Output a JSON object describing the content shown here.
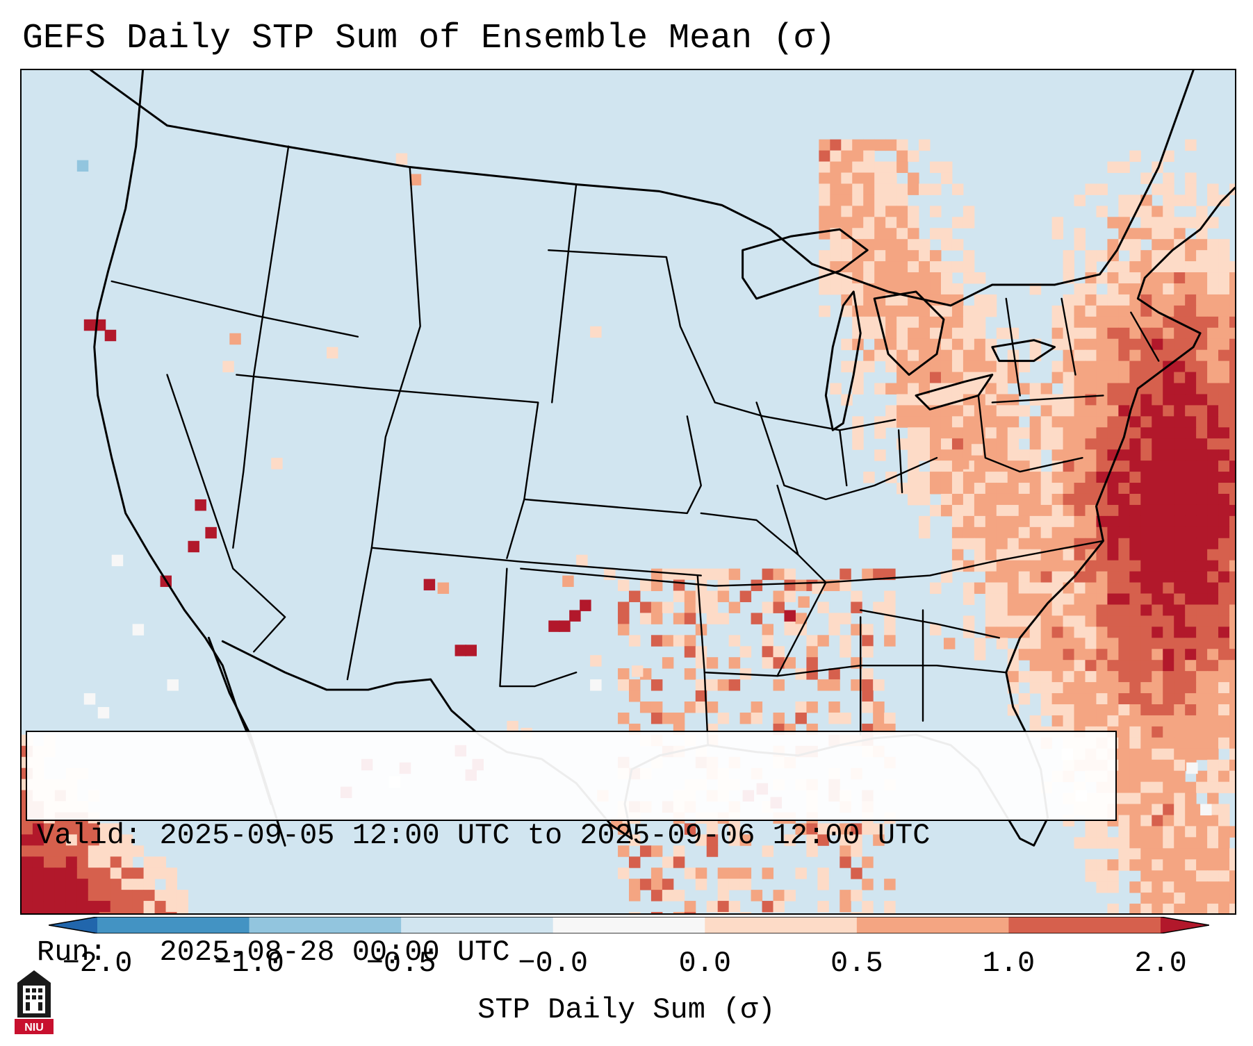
{
  "header": {
    "title": "GEFS Daily STP Sum of Ensemble Mean (σ)"
  },
  "info_box": {
    "valid_label": "Valid:",
    "valid_value": "2025-09-05 12:00 UTC to 2025-09-06 12:00 UTC",
    "run_label": "Run:",
    "run_value": "2025-08-28 00:00 UTC"
  },
  "colorbar": {
    "label": "STP Daily Sum (σ)",
    "ticks": [
      "−2.0",
      "−1.0",
      "−0.5",
      "−0.0",
      "0.0",
      "0.5",
      "1.0",
      "2.0"
    ],
    "colors": [
      "#2166ac",
      "#4393c3",
      "#92c5de",
      "#d1e5f0",
      "#f7f7f7",
      "#fddbc7",
      "#f4a582",
      "#d6604d",
      "#b2182b"
    ],
    "extend": "both"
  },
  "logo": {
    "text": "NIU",
    "color": "#c8102e"
  },
  "map": {
    "projection": "lambert-conformal",
    "region": "CONUS",
    "background_color": "#d1e5f0",
    "border_color": "#000000"
  }
}
